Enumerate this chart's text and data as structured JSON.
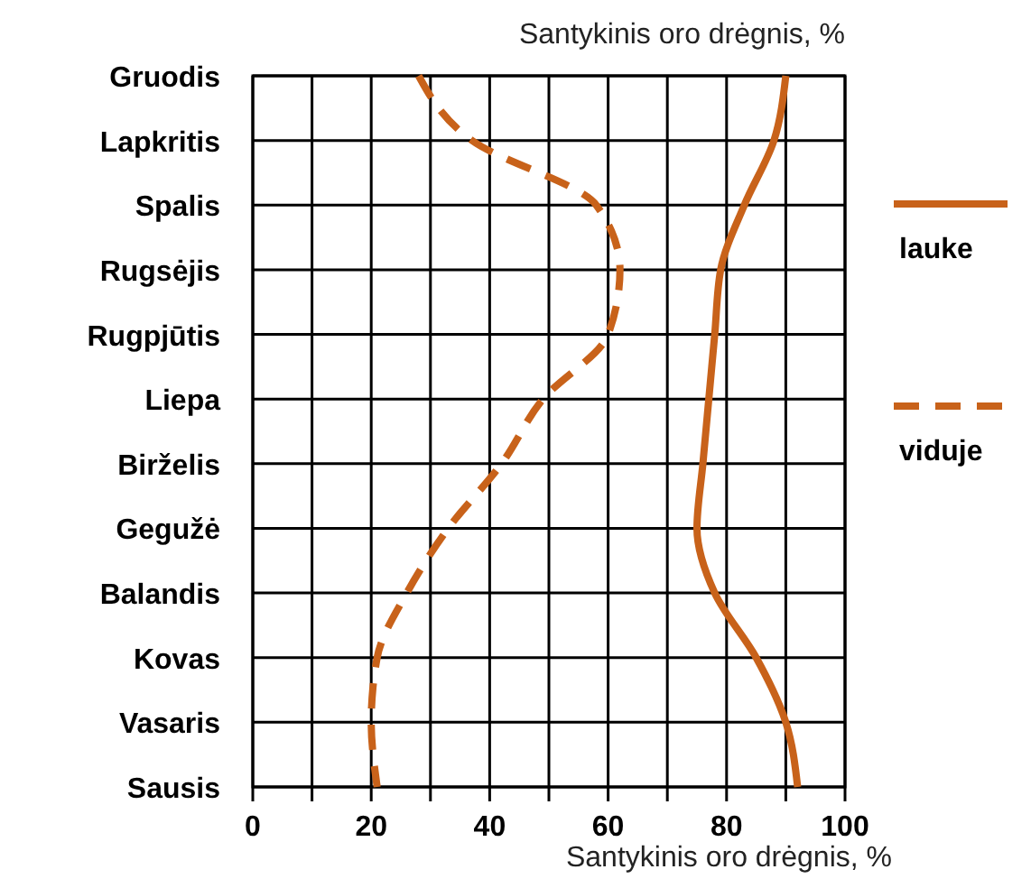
{
  "chart_data": {
    "type": "line",
    "orientation": "horizontal",
    "title": "Santykinis oro drėgnis, %",
    "xlabel": "Santykinis oro drėgnis, %",
    "categories": [
      "Gruodis",
      "Lapkritis",
      "Spalis",
      "Rugsėjis",
      "Rugpjūtis",
      "Liepa",
      "Birželis",
      "Gegužė",
      "Balandis",
      "Kovas",
      "Vasaris",
      "Sausis"
    ],
    "series": [
      {
        "name": "lauke",
        "color": "#c8621a",
        "line_style": "solid",
        "values": [
          90,
          88,
          83,
          79,
          78,
          77,
          76,
          75,
          78,
          85,
          90,
          92
        ]
      },
      {
        "name": "viduje",
        "color": "#c8621a",
        "line_style": "dashed",
        "values": [
          28,
          37,
          58,
          62,
          60,
          49,
          42,
          33,
          26,
          21,
          20,
          21
        ]
      }
    ],
    "xlim": [
      0,
      100
    ],
    "xticks": [
      0,
      {
        "value": 10,
        "label": null
      },
      20,
      {
        "value": 30,
        "label": null
      },
      40,
      {
        "value": 50,
        "label": null
      },
      60,
      {
        "value": 70,
        "label": null
      },
      80,
      {
        "value": 90,
        "label": null
      },
      100
    ],
    "grid": true,
    "legend": "right",
    "marker": "none"
  }
}
